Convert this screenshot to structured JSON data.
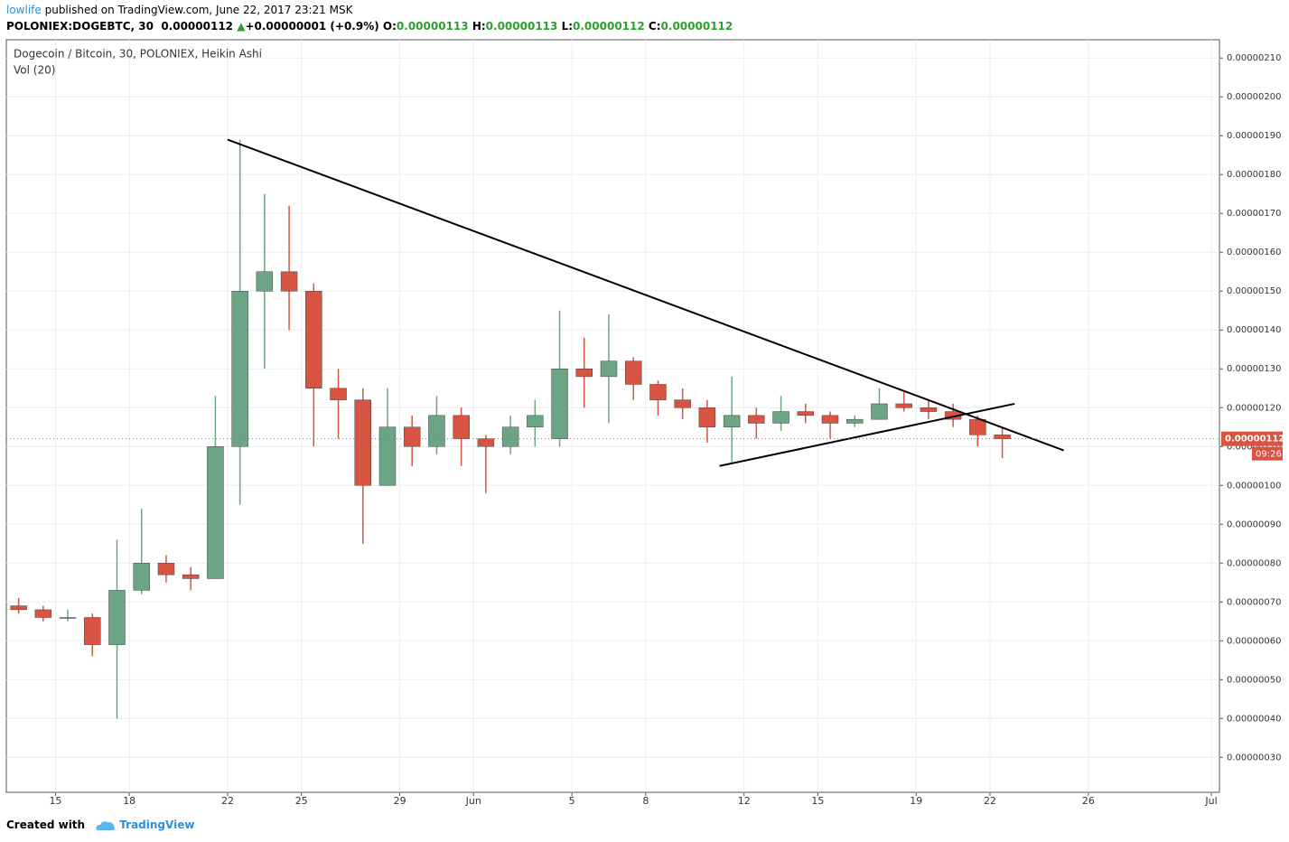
{
  "header": {
    "author": "lowlife",
    "published": "published on TradingView.com, June 22, 2017 23:21 MSK",
    "symbol": "POLONIEX:DOGEBTC, 30",
    "last": "0.00000112",
    "arrow": "▲",
    "change": "+0.00000001 (+0.9%)",
    "o_label": "O:",
    "o": "0.00000113",
    "h_label": "H:",
    "h": "0.00000113",
    "l_label": "L:",
    "l": "0.00000112",
    "c_label": "C:",
    "c": "0.00000112"
  },
  "footer": {
    "created": "Created with",
    "brand": "TradingView"
  },
  "chart_data": {
    "type": "candlestick",
    "title": "Dogecoin / Bitcoin, 30, POLONIEX, Heikin Ashi",
    "indicator": "Vol (20)",
    "up_color": "#6ba583",
    "down_color": "#d75442",
    "grid": true,
    "x": [
      "2017-05-13",
      "2017-05-14",
      "2017-05-15",
      "2017-05-16",
      "2017-05-17",
      "2017-05-18",
      "2017-05-19",
      "2017-05-20",
      "2017-05-21",
      "2017-05-22",
      "2017-05-23",
      "2017-05-24",
      "2017-05-25",
      "2017-05-26",
      "2017-05-27",
      "2017-05-28",
      "2017-05-29",
      "2017-05-30",
      "2017-05-31",
      "2017-06-01",
      "2017-06-02",
      "2017-06-03",
      "2017-06-04",
      "2017-06-05",
      "2017-06-06",
      "2017-06-07",
      "2017-06-08",
      "2017-06-09",
      "2017-06-10",
      "2017-06-11",
      "2017-06-12",
      "2017-06-13",
      "2017-06-14",
      "2017-06-15",
      "2017-06-16",
      "2017-06-17",
      "2017-06-18",
      "2017-06-19",
      "2017-06-20",
      "2017-06-21",
      "2017-06-22"
    ],
    "open": [
      6.9e-07,
      6.8e-07,
      6.6e-07,
      6.6e-07,
      5.9e-07,
      7.3e-07,
      8e-07,
      7.7e-07,
      7.6e-07,
      1.1e-06,
      1.5e-06,
      1.55e-06,
      1.5e-06,
      1.25e-06,
      1.22e-06,
      1e-06,
      1.15e-06,
      1.1e-06,
      1.18e-06,
      1.12e-06,
      1.1e-06,
      1.15e-06,
      1.12e-06,
      1.3e-06,
      1.28e-06,
      1.32e-06,
      1.26e-06,
      1.22e-06,
      1.2e-06,
      1.15e-06,
      1.18e-06,
      1.16e-06,
      1.19e-06,
      1.18e-06,
      1.16e-06,
      1.17e-06,
      1.21e-06,
      1.2e-06,
      1.19e-06,
      1.17e-06,
      1.13e-06
    ],
    "high": [
      7.1e-07,
      6.9e-07,
      6.8e-07,
      6.7e-07,
      8.6e-07,
      9.4e-07,
      8.2e-07,
      7.9e-07,
      1.23e-06,
      1.89e-06,
      1.75e-06,
      1.72e-06,
      1.52e-06,
      1.3e-06,
      1.25e-06,
      1.25e-06,
      1.18e-06,
      1.23e-06,
      1.2e-06,
      1.13e-06,
      1.18e-06,
      1.22e-06,
      1.45e-06,
      1.38e-06,
      1.44e-06,
      1.33e-06,
      1.27e-06,
      1.25e-06,
      1.22e-06,
      1.28e-06,
      1.2e-06,
      1.23e-06,
      1.21e-06,
      1.19e-06,
      1.18e-06,
      1.25e-06,
      1.24e-06,
      1.22e-06,
      1.21e-06,
      1.18e-06,
      1.15e-06
    ],
    "low": [
      6.7e-07,
      6.5e-07,
      6.5e-07,
      5.6e-07,
      4e-07,
      7.2e-07,
      7.5e-07,
      7.3e-07,
      7.6e-07,
      9.5e-07,
      1.3e-06,
      1.4e-06,
      1.1e-06,
      1.12e-06,
      8.5e-07,
      1e-06,
      1.05e-06,
      1.08e-06,
      1.05e-06,
      9.8e-07,
      1.08e-06,
      1.1e-06,
      1.1e-06,
      1.2e-06,
      1.16e-06,
      1.22e-06,
      1.18e-06,
      1.17e-06,
      1.11e-06,
      1.06e-06,
      1.12e-06,
      1.14e-06,
      1.16e-06,
      1.12e-06,
      1.15e-06,
      1.17e-06,
      1.19e-06,
      1.17e-06,
      1.15e-06,
      1.1e-06,
      1.07e-06
    ],
    "close": [
      6.8e-07,
      6.6e-07,
      6.6e-07,
      5.9e-07,
      7.3e-07,
      8e-07,
      7.7e-07,
      7.6e-07,
      1.1e-06,
      1.5e-06,
      1.55e-06,
      1.5e-06,
      1.25e-06,
      1.22e-06,
      1e-06,
      1.15e-06,
      1.1e-06,
      1.18e-06,
      1.12e-06,
      1.1e-06,
      1.15e-06,
      1.18e-06,
      1.3e-06,
      1.28e-06,
      1.32e-06,
      1.26e-06,
      1.22e-06,
      1.2e-06,
      1.15e-06,
      1.18e-06,
      1.16e-06,
      1.19e-06,
      1.18e-06,
      1.16e-06,
      1.17e-06,
      1.21e-06,
      1.2e-06,
      1.19e-06,
      1.17e-06,
      1.13e-06,
      1.12e-06
    ],
    "trendlines": [
      {
        "x": [
          "2017-05-22",
          "2017-06-25"
        ],
        "y": [
          1.89e-06,
          1.09e-06
        ]
      },
      {
        "x": [
          "2017-06-11",
          "2017-06-23"
        ],
        "y": [
          1.05e-06,
          1.21e-06
        ]
      }
    ],
    "last_price": {
      "value": 1.12e-06,
      "label": "0.00000112"
    },
    "countdown": "09:26",
    "xlim": [
      "2017-05-13",
      "2017-07-01"
    ],
    "xticks": [
      {
        "value": "2017-05-15",
        "label": "15"
      },
      {
        "value": "2017-05-18",
        "label": "18"
      },
      {
        "value": "2017-05-22",
        "label": "22"
      },
      {
        "value": "2017-05-25",
        "label": "25"
      },
      {
        "value": "2017-05-29",
        "label": "29"
      },
      {
        "value": "2017-06-01",
        "label": "Jun"
      },
      {
        "value": "2017-06-05",
        "label": "5"
      },
      {
        "value": "2017-06-08",
        "label": "8"
      },
      {
        "value": "2017-06-12",
        "label": "12"
      },
      {
        "value": "2017-06-15",
        "label": "15"
      },
      {
        "value": "2017-06-19",
        "label": "19"
      },
      {
        "value": "2017-06-22",
        "label": "22"
      },
      {
        "value": "2017-06-26",
        "label": "26"
      },
      {
        "value": "2017-07-01",
        "label": "Jul"
      }
    ],
    "ylim": [
      2.1e-07,
      2.147e-06
    ],
    "yticks": [
      {
        "value": 3e-07,
        "label": "0.00000030"
      },
      {
        "value": 4e-07,
        "label": "0.00000040"
      },
      {
        "value": 5e-07,
        "label": "0.00000050"
      },
      {
        "value": 6e-07,
        "label": "0.00000060"
      },
      {
        "value": 7e-07,
        "label": "0.00000070"
      },
      {
        "value": 8e-07,
        "label": "0.00000080"
      },
      {
        "value": 9e-07,
        "label": "0.00000090"
      },
      {
        "value": 1e-06,
        "label": "0.00000100"
      },
      {
        "value": 1.1e-06,
        "label": "0.00000110"
      },
      {
        "value": 1.2e-06,
        "label": "0.00000120"
      },
      {
        "value": 1.3e-06,
        "label": "0.00000130"
      },
      {
        "value": 1.4e-06,
        "label": "0.00000140"
      },
      {
        "value": 1.5e-06,
        "label": "0.00000150"
      },
      {
        "value": 1.6e-06,
        "label": "0.00000160"
      },
      {
        "value": 1.7e-06,
        "label": "0.00000170"
      },
      {
        "value": 1.8e-06,
        "label": "0.00000180"
      },
      {
        "value": 1.9e-06,
        "label": "0.00000190"
      },
      {
        "value": 2e-06,
        "label": "0.00000200"
      },
      {
        "value": 2.1e-06,
        "label": "0.00000210"
      }
    ]
  }
}
